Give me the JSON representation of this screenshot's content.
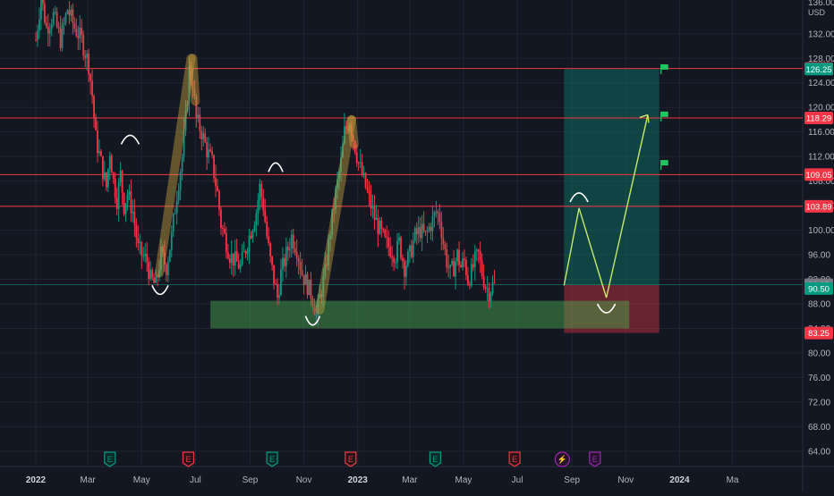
{
  "chart_data": {
    "type": "candlestick",
    "currency_label": "USD",
    "top_tick_partial": "136.00",
    "y_ticks": [
      "132.00",
      "128.00",
      "124.00",
      "120.00",
      "116.00",
      "112.00",
      "108.00",
      "104.00",
      "100.00",
      "96.00",
      "92.00",
      "88.00",
      "84.00",
      "80.00",
      "76.00",
      "72.00",
      "68.00",
      "64.00"
    ],
    "y_tick_values": [
      132,
      128,
      124,
      120,
      116,
      112,
      108,
      104,
      100,
      96,
      92,
      88,
      84,
      80,
      76,
      72,
      68,
      64
    ],
    "ylim": [
      61.5,
      137.5
    ],
    "x_ticks": [
      {
        "label": "2022",
        "t": 0,
        "bold": true
      },
      {
        "label": "Mar",
        "t": 59
      },
      {
        "label": "May",
        "t": 120
      },
      {
        "label": "Jul",
        "t": 181
      },
      {
        "label": "Sep",
        "t": 243
      },
      {
        "label": "Nov",
        "t": 304
      },
      {
        "label": "2023",
        "t": 365,
        "bold": true
      },
      {
        "label": "Mar",
        "t": 424
      },
      {
        "label": "May",
        "t": 485
      },
      {
        "label": "Jul",
        "t": 546
      },
      {
        "label": "Sep",
        "t": 608
      },
      {
        "label": "Nov",
        "t": 669
      },
      {
        "label": "2024",
        "t": 730,
        "bold": true
      },
      {
        "label": "Ma",
        "t": 790
      }
    ],
    "horizontal_levels": [
      126.34,
      118.29,
      109.05,
      103.89
    ],
    "price_tags": [
      {
        "label": "126.34",
        "value": 126.34,
        "color": "#f23645"
      },
      {
        "label": "126.25",
        "value": 126.25,
        "color": "#089981"
      },
      {
        "label": "118.29",
        "value": 118.29,
        "color": "#f23645"
      },
      {
        "label": "109.05",
        "value": 109.05,
        "color": "#f23645"
      },
      {
        "label": "103.89",
        "value": 103.89,
        "color": "#f23645"
      },
      {
        "label": "91.13",
        "value": 91.13,
        "color": "#787b86"
      },
      {
        "label": "90.50",
        "value": 90.5,
        "color": "#089981"
      },
      {
        "label": "83.25",
        "value": 83.25,
        "color": "#f23645"
      }
    ],
    "last_price": 90.5,
    "price_path": [
      [
        0,
        131
      ],
      [
        6,
        138
      ],
      [
        12,
        133
      ],
      [
        20,
        135
      ],
      [
        28,
        131
      ],
      [
        36,
        136
      ],
      [
        44,
        133
      ],
      [
        52,
        131
      ],
      [
        60,
        127
      ],
      [
        64,
        122
      ],
      [
        68,
        115
      ],
      [
        74,
        111
      ],
      [
        80,
        107
      ],
      [
        84,
        113
      ],
      [
        88,
        108
      ],
      [
        92,
        105
      ],
      [
        96,
        109
      ],
      [
        100,
        104
      ],
      [
        104,
        106
      ],
      [
        110,
        103
      ],
      [
        116,
        97
      ],
      [
        120,
        96
      ],
      [
        126,
        95
      ],
      [
        130,
        92
      ],
      [
        136,
        91
      ],
      [
        142,
        96
      ],
      [
        148,
        94
      ],
      [
        154,
        99
      ],
      [
        160,
        106
      ],
      [
        166,
        112
      ],
      [
        170,
        118
      ],
      [
        174,
        126
      ],
      [
        178,
        124
      ],
      [
        182,
        118
      ],
      [
        188,
        116
      ],
      [
        194,
        113
      ],
      [
        200,
        111
      ],
      [
        206,
        106
      ],
      [
        210,
        101
      ],
      [
        216,
        98
      ],
      [
        220,
        96
      ],
      [
        226,
        95
      ],
      [
        232,
        94
      ],
      [
        238,
        97
      ],
      [
        244,
        100
      ],
      [
        250,
        103
      ],
      [
        254,
        107
      ],
      [
        258,
        104
      ],
      [
        262,
        99
      ],
      [
        266,
        95
      ],
      [
        270,
        92
      ],
      [
        274,
        89
      ],
      [
        278,
        93
      ],
      [
        284,
        96
      ],
      [
        290,
        99
      ],
      [
        296,
        97
      ],
      [
        302,
        93
      ],
      [
        308,
        91
      ],
      [
        314,
        89
      ],
      [
        318,
        86
      ],
      [
        322,
        89
      ],
      [
        328,
        93
      ],
      [
        334,
        100
      ],
      [
        340,
        106
      ],
      [
        346,
        111
      ],
      [
        350,
        116
      ],
      [
        356,
        118
      ],
      [
        360,
        115
      ],
      [
        366,
        111
      ],
      [
        372,
        108
      ],
      [
        378,
        105
      ],
      [
        384,
        102
      ],
      [
        390,
        100
      ],
      [
        396,
        98
      ],
      [
        402,
        97
      ],
      [
        408,
        96
      ],
      [
        412,
        98
      ],
      [
        418,
        94
      ],
      [
        424,
        96
      ],
      [
        430,
        99
      ],
      [
        436,
        100
      ],
      [
        442,
        99
      ],
      [
        448,
        101
      ],
      [
        454,
        103
      ],
      [
        458,
        102
      ],
      [
        462,
        98
      ],
      [
        466,
        95
      ],
      [
        470,
        93
      ],
      [
        474,
        94
      ],
      [
        478,
        96
      ],
      [
        482,
        94
      ],
      [
        486,
        95
      ],
      [
        490,
        92
      ],
      [
        494,
        93
      ],
      [
        498,
        95
      ],
      [
        502,
        96
      ],
      [
        506,
        93
      ],
      [
        510,
        91
      ],
      [
        514,
        90
      ],
      [
        518,
        91
      ],
      [
        520,
        91
      ]
    ],
    "markers": [
      {
        "label": "E",
        "t": 84,
        "kind": "earnings-good"
      },
      {
        "label": "E",
        "t": 173,
        "kind": "earnings-bad"
      },
      {
        "label": "E",
        "t": 268,
        "kind": "earnings-good"
      },
      {
        "label": "E",
        "t": 357,
        "kind": "earnings-bad"
      },
      {
        "label": "E",
        "t": 453,
        "kind": "earnings-good"
      },
      {
        "label": "E",
        "t": 543,
        "kind": "earnings-bad"
      },
      {
        "label": "⚡",
        "t": 597,
        "kind": "event"
      },
      {
        "label": "E",
        "t": 634,
        "kind": "earnings-future"
      }
    ],
    "position": {
      "entry": 91.13,
      "target": 126.25,
      "stop": 83.25,
      "t_start": 599,
      "t_end": 707
    },
    "support_zone": {
      "low": 84.0,
      "high": 88.5,
      "t_start": 198,
      "t_end": 673
    },
    "flags_at": [
      126.3,
      118.6,
      110.7
    ],
    "grid": true
  },
  "colors": {
    "bg": "#131722",
    "grid": "#1f2430",
    "text": "#b2b5be",
    "up": "#089981",
    "down": "#f23645",
    "level": "#f23645"
  }
}
